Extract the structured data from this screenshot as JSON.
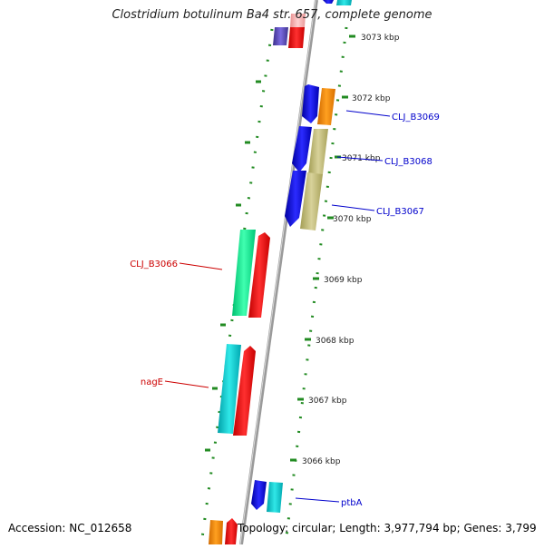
{
  "title": "Clostridium botulinum Ba4 str. 657, complete genome",
  "footer": {
    "accession": "Accession: NC_012658",
    "topology": "Topology: circular; Length: 3,977,794 bp; Genes: 3,799"
  },
  "scale_labels": [
    "3073 kbp",
    "3072 kbp",
    "3071 kbp",
    "3070 kbp",
    "3069 kbp",
    "3068 kbp",
    "3067 kbp",
    "3066 kbp"
  ],
  "gene_labels": {
    "cli_b3069": "CLJ_B3069",
    "cli_b3068": "CLJ_B3068",
    "cli_b3067": "CLJ_B3067",
    "cli_b3066": "CLJ_B3066",
    "nage": "nagE",
    "ptba": "ptbA"
  },
  "colors": {
    "forward_label": "#0000cc",
    "reverse_label": "#cc0000",
    "backbone": "#8c8c8c",
    "dot_track": "#228b22",
    "blue": "#1010e6",
    "orange": "#ff8c00",
    "khaki": "#bdb76b",
    "red": "#ee1010",
    "spring_green": "#00ee88",
    "cyan": "#00c8c8",
    "slate": "#6a5acd",
    "pink": "#f4a0a0"
  }
}
